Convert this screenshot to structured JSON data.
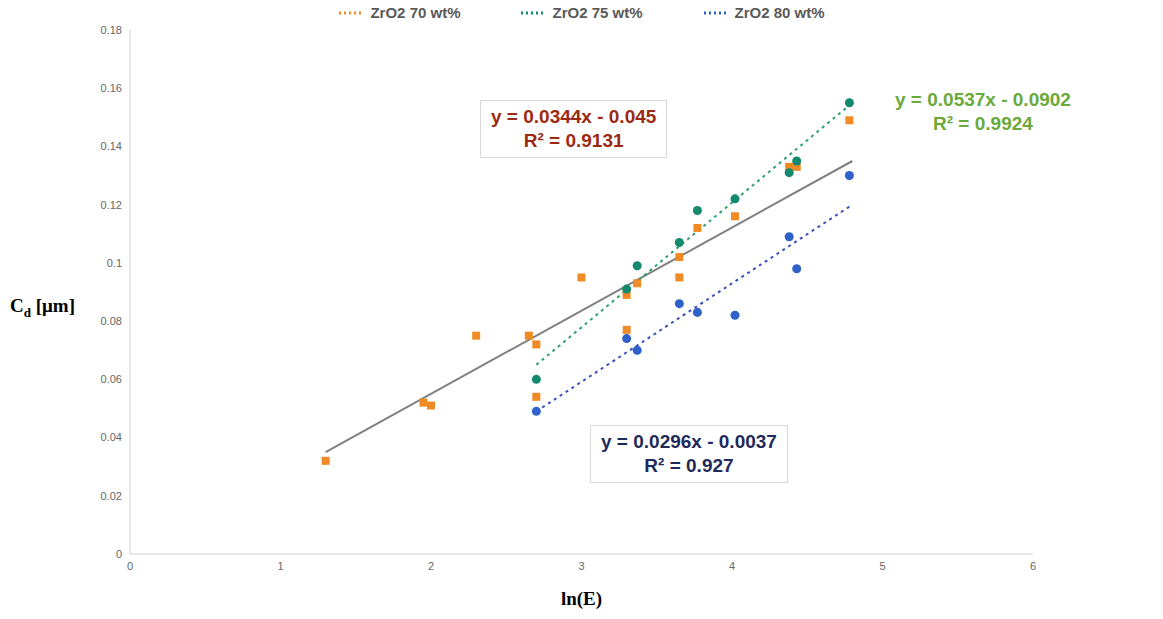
{
  "chart_data": {
    "type": "scatter",
    "x_label": "ln(E)",
    "y_label": "Cd [μm]",
    "xlim": [
      0,
      6
    ],
    "xticks": [
      0,
      1,
      2,
      3,
      4,
      5,
      6
    ],
    "ylim": [
      0,
      0.18
    ],
    "yticks": [
      0,
      0.02,
      0.04,
      0.06,
      0.08,
      0.1,
      0.12,
      0.14,
      0.16,
      0.18
    ],
    "grid": false,
    "legend": "top",
    "series": [
      {
        "name": "ZrO2 70 wt%",
        "color": "#f08a24",
        "marker": "square",
        "x": [
          1.3,
          1.95,
          2.0,
          2.3,
          2.65,
          2.7,
          2.7,
          3.0,
          3.3,
          3.3,
          3.37,
          3.65,
          3.65,
          3.77,
          4.02,
          4.38,
          4.43,
          4.78
        ],
        "values": [
          0.032,
          0.052,
          0.051,
          0.075,
          0.075,
          0.072,
          0.054,
          0.095,
          0.089,
          0.077,
          0.093,
          0.102,
          0.095,
          0.112,
          0.116,
          0.133,
          0.133,
          0.149
        ],
        "trendline": {
          "x": [
            1.3,
            4.8
          ],
          "values": [
            0.035,
            0.135
          ],
          "color": "#808080",
          "line_style": "solid"
        }
      },
      {
        "name": "ZrO2 75 wt%",
        "color": "#138a6e",
        "marker": "circle",
        "x": [
          2.7,
          3.3,
          3.37,
          3.65,
          3.77,
          4.02,
          4.38,
          4.43,
          4.78
        ],
        "values": [
          0.06,
          0.091,
          0.099,
          0.107,
          0.118,
          0.122,
          0.131,
          0.135,
          0.155
        ],
        "trendline": {
          "x": [
            2.7,
            4.8
          ],
          "values": [
            0.065,
            0.155
          ],
          "color": "#2ea06e",
          "line_style": "dotted"
        }
      },
      {
        "name": "ZrO2 80 wt%",
        "color": "#2f62c8",
        "marker": "circle",
        "x": [
          2.7,
          3.3,
          3.37,
          3.65,
          3.77,
          4.02,
          4.38,
          4.43,
          4.78
        ],
        "values": [
          0.049,
          0.074,
          0.07,
          0.086,
          0.083,
          0.082,
          0.109,
          0.098,
          0.13
        ],
        "trendline": {
          "x": [
            2.7,
            4.8
          ],
          "values": [
            0.049,
            0.12
          ],
          "color": "#3b4fb8",
          "line_style": "dotted"
        }
      }
    ],
    "annotations": [
      {
        "series": "ZrO2 70 wt%",
        "text": [
          "y = 0.0344x - 0.045",
          "R² = 0.9131"
        ],
        "color": "#9c2a12"
      },
      {
        "series": "ZrO2 75 wt%",
        "text": [
          "y = 0.0537x - 0.0902",
          "R² = 0.9924"
        ],
        "color": "#6aaa3a"
      },
      {
        "series": "ZrO2 80 wt%",
        "text": [
          "y = 0.0296x - 0.0037",
          "R² = 0.927"
        ],
        "color": "#1f2a5a"
      }
    ]
  }
}
